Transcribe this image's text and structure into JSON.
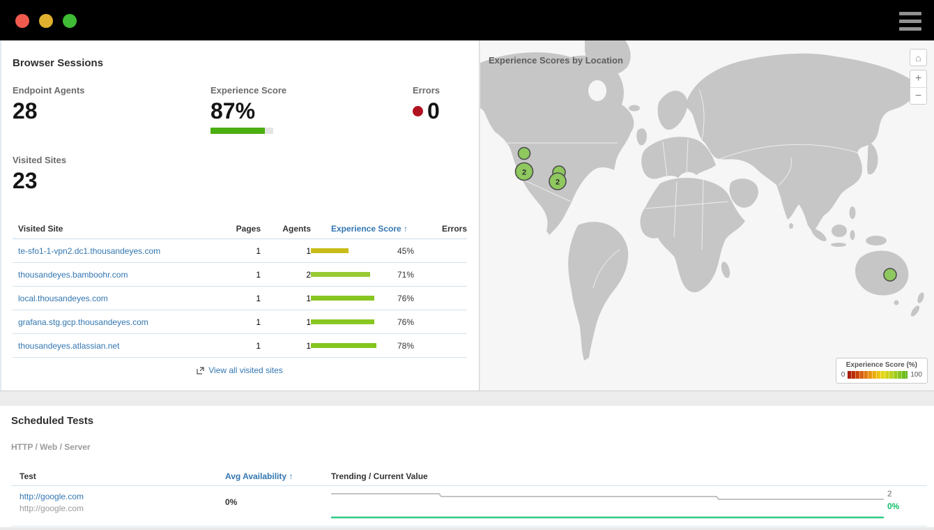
{
  "window": {
    "traffic_lights": {
      "close": "#f05b4e",
      "minimize": "#e0b02e",
      "zoom": "#40bb36"
    },
    "menu_icon": "hamburger-icon"
  },
  "browser_sessions": {
    "title": "Browser Sessions",
    "stats": [
      {
        "label": "Endpoint Agents",
        "value": "28"
      },
      {
        "label": "Experience Score",
        "value": "87%",
        "bar_pct": 87,
        "bar_color": "#4bae11"
      },
      {
        "label": "Errors",
        "value": "0",
        "dot_color": "#b1121f",
        "dot_icon": "error-dot-icon"
      },
      {
        "label": "Visited Sites",
        "value": "23"
      }
    ],
    "table": {
      "columns": {
        "site": "Visited Site",
        "pages": "Pages",
        "agents": "Agents",
        "score": "Experience Score",
        "errors": "Errors"
      },
      "sort_column": "Experience Score",
      "sort_arrow": "↑",
      "rows": [
        {
          "site": "te-sfo1-1-vpn2.dc1.thousandeyes.com",
          "pages": "1",
          "agents": "1",
          "score": 45,
          "score_label": "45%",
          "bar_color": "#c9bc18",
          "errors": ""
        },
        {
          "site": "thousandeyes.bamboohr.com",
          "pages": "1",
          "agents": "2",
          "score": 71,
          "score_label": "71%",
          "bar_color": "#97c933",
          "errors": ""
        },
        {
          "site": "local.thousandeyes.com",
          "pages": "1",
          "agents": "1",
          "score": 76,
          "score_label": "76%",
          "bar_color": "#88c622",
          "errors": ""
        },
        {
          "site": "grafana.stg.gcp.thousandeyes.com",
          "pages": "1",
          "agents": "1",
          "score": 76,
          "score_label": "76%",
          "bar_color": "#88c622",
          "errors": ""
        },
        {
          "site": "thousandeyes.atlassian.net",
          "pages": "1",
          "agents": "1",
          "score": 78,
          "score_label": "78%",
          "bar_color": "#83c61d",
          "errors": ""
        }
      ],
      "footer_link": "View all visited sites",
      "footer_icon": "external-link-icon"
    }
  },
  "map": {
    "title": "Experience Scores by Location",
    "land_color": "#c6c6c6",
    "background_color": "#f6f6f6",
    "marker_fill": "#8fc85e",
    "marker_stroke": "#4c4c4c",
    "markers": [
      {
        "label": ""
      },
      {
        "label": "2"
      },
      {
        "label": ""
      },
      {
        "label": "2"
      },
      {
        "label": ""
      }
    ],
    "controls": {
      "home_icon": "home-icon",
      "home_glyph": "⌂",
      "zoom_in_label": "+",
      "zoom_out_label": "−"
    },
    "legend": {
      "title": "Experience Score (%)",
      "min_label": "0",
      "max_label": "100",
      "gradient": "linear-gradient(90deg,#a51608,#c43a0a,#e0720f,#eda711,#ead714,#bfd119,#8ac71e,#55b314)"
    }
  },
  "scheduled_tests": {
    "title": "Scheduled Tests",
    "subtitle": "HTTP / Web / Server",
    "columns": {
      "test": "Test",
      "availability": "Avg Availability",
      "trend": "Trending / Current Value"
    },
    "sort_column": "Avg Availability",
    "sort_arrow": "↑",
    "rows": [
      {
        "name": "http://google.com",
        "subname": "http://google.com",
        "availability": "0%",
        "trend_end_label": "2",
        "current_value": "0%",
        "trend_gray": "#c3c3c3",
        "trend_green": "#2fca85",
        "current_value_color": "#0fbf67"
      }
    ]
  }
}
